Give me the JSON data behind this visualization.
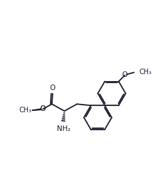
{
  "bg_color": "#ffffff",
  "line_color": "#1a1a2e",
  "line_width": 1.3,
  "font_size": 7.5,
  "figsize": [
    2.19,
    2.67
  ],
  "dpi": 100,
  "xlim": [
    0,
    10
  ],
  "ylim": [
    0,
    12
  ]
}
